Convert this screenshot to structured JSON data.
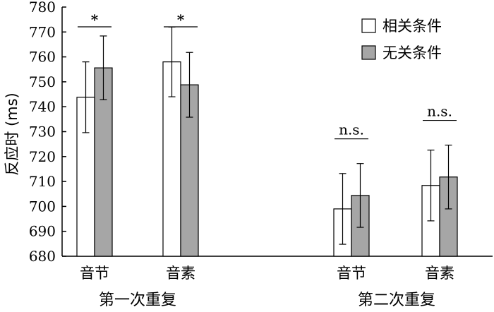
{
  "chart_data": {
    "type": "bar",
    "title": "",
    "ylabel": "反应时 (ms)",
    "ylim": [
      680,
      780
    ],
    "yticks": [
      680,
      690,
      700,
      710,
      720,
      730,
      740,
      750,
      760,
      770,
      780
    ],
    "grid": false,
    "legend_position": "top-right",
    "groups": [
      {
        "label": "第一次重复",
        "categories": [
          "音节",
          "音素"
        ]
      },
      {
        "label": "第二次重复",
        "categories": [
          "音节",
          "音素"
        ]
      }
    ],
    "categories": [
      "音节",
      "音素",
      "音节",
      "音素"
    ],
    "series": [
      {
        "name": "相关条件",
        "color": "#ffffff",
        "values": [
          743.8,
          758.0,
          699.0,
          708.4
        ],
        "errors": [
          14.2,
          14.0,
          14.2,
          14.2
        ]
      },
      {
        "name": "无关条件",
        "color": "#a6a6a6",
        "values": [
          755.6,
          748.8,
          704.4,
          711.8
        ],
        "errors": [
          12.8,
          13.0,
          12.8,
          12.8
        ]
      }
    ],
    "annotations": [
      "*",
      "*",
      "n.s.",
      "n.s."
    ]
  }
}
